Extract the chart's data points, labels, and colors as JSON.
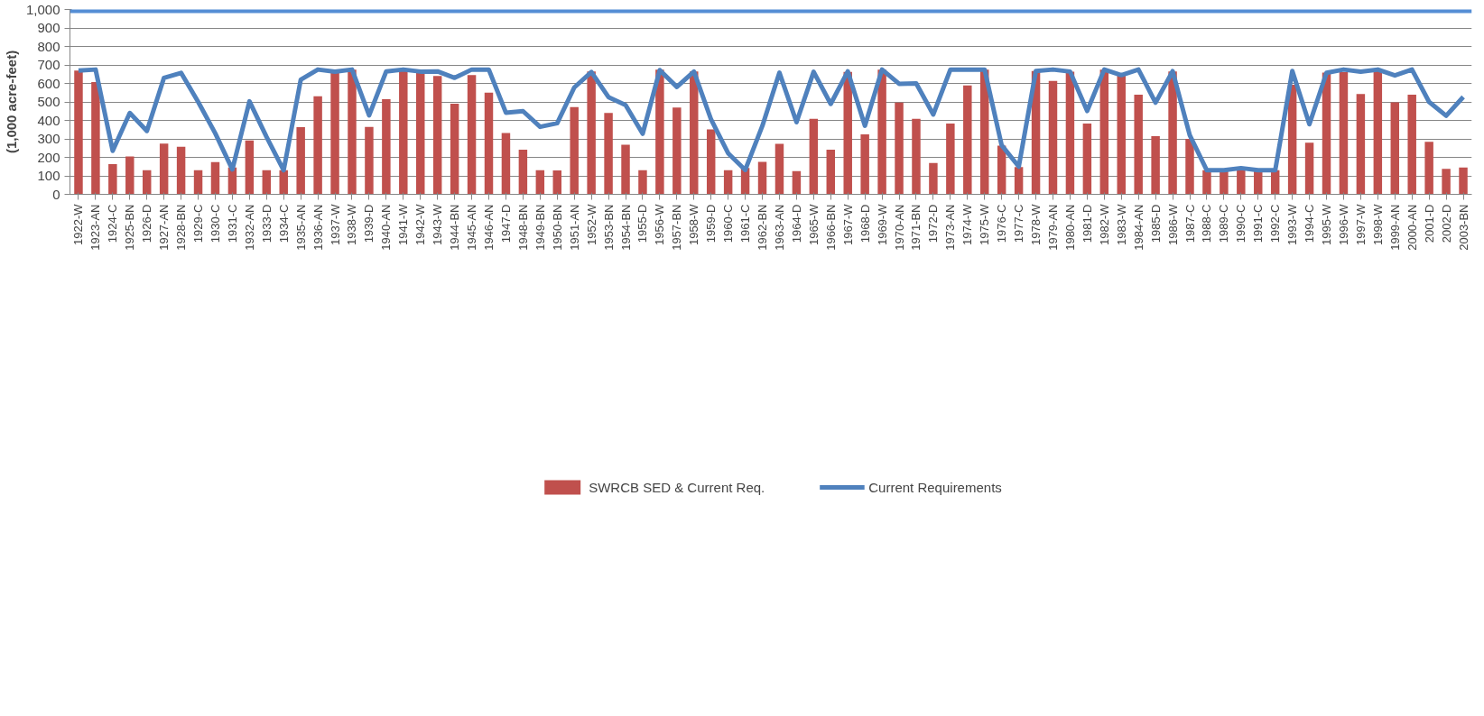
{
  "chart_data": {
    "type": "bar",
    "ylabel": "(1,000 acre-feet)",
    "categories": [
      "1922-W",
      "1923-AN",
      "1924-C",
      "1925-BN",
      "1926-D",
      "1927-AN",
      "1928-BN",
      "1929-C",
      "1930-C",
      "1931-C",
      "1932-AN",
      "1933-D",
      "1934-C",
      "1935-AN",
      "1936-AN",
      "1937-W",
      "1938-W",
      "1939-D",
      "1940-AN",
      "1941-W",
      "1942-W",
      "1943-W",
      "1944-BN",
      "1945-AN",
      "1946-AN",
      "1947-D",
      "1948-BN",
      "1949-BN",
      "1950-BN",
      "1951-AN",
      "1952-W",
      "1953-BN",
      "1954-BN",
      "1955-D",
      "1956-W",
      "1957-BN",
      "1958-W",
      "1959-D",
      "1960-C",
      "1961-C",
      "1962-BN",
      "1963-AN",
      "1964-D",
      "1965-W",
      "1966-BN",
      "1967-W",
      "1968-D",
      "1969-W",
      "1970-AN",
      "1971-BN",
      "1972-D",
      "1973-AN",
      "1974-W",
      "1975-W",
      "1976-C",
      "1977-C",
      "1978-W",
      "1979-AN",
      "1980-AN",
      "1981-D",
      "1982-W",
      "1983-W",
      "1984-AN",
      "1985-D",
      "1986-W",
      "1987-C",
      "1988-C",
      "1989-C",
      "1990-C",
      "1991-C",
      "1992-C",
      "1993-W",
      "1994-C",
      "1995-W",
      "1996-W",
      "1997-W",
      "1998-W",
      "1999-AN",
      "2000-AN",
      "2001-D",
      "2002-D",
      "2003-BN"
    ],
    "series": [
      {
        "name": "SWRCB SED & Current Req.",
        "color": "#c0504d",
        "values": [
          670,
          607,
          163,
          205,
          130,
          274,
          257,
          130,
          175,
          145,
          292,
          130,
          130,
          363,
          530,
          660,
          675,
          365,
          515,
          670,
          660,
          640,
          490,
          645,
          550,
          332,
          242,
          130,
          129,
          472,
          665,
          440,
          268,
          130,
          675,
          469,
          665,
          351,
          130,
          143,
          176,
          273,
          126,
          408,
          241,
          662,
          325,
          675,
          496,
          409,
          169,
          383,
          589,
          675,
          263,
          147,
          667,
          613,
          663,
          383,
          675,
          648,
          539,
          315,
          665,
          300,
          130,
          130,
          138,
          133,
          130,
          593,
          279,
          658,
          661,
          543,
          670,
          498,
          539,
          284,
          138,
          145
        ]
      },
      {
        "name": "Current Requirements",
        "type": "line",
        "color": "#4f81bd",
        "values": [
          670,
          675,
          235,
          440,
          343,
          630,
          657,
          500,
          330,
          135,
          503,
          310,
          130,
          620,
          675,
          663,
          675,
          427,
          665,
          675,
          664,
          665,
          630,
          675,
          675,
          442,
          450,
          365,
          385,
          578,
          662,
          526,
          483,
          328,
          672,
          581,
          664,
          405,
          222,
          132,
          370,
          658,
          390,
          663,
          489,
          665,
          371,
          675,
          598,
          600,
          432,
          675,
          675,
          675,
          265,
          150,
          667,
          675,
          664,
          451,
          675,
          645,
          675,
          496,
          666,
          320,
          130,
          130,
          142,
          130,
          130,
          667,
          379,
          657,
          675,
          663,
          675,
          643,
          675,
          500,
          425,
          527
        ]
      }
    ],
    "ylim": [
      0,
      1000
    ],
    "yticks": [
      0,
      100,
      200,
      300,
      400,
      500,
      600,
      700,
      800,
      900,
      {
        "value": 1000,
        "label": "1,000"
      }
    ],
    "ref_lines": [
      {
        "axis": "y",
        "value": 1000,
        "color": "#558ed5"
      }
    ],
    "grid": "y",
    "legend": "bottom"
  }
}
